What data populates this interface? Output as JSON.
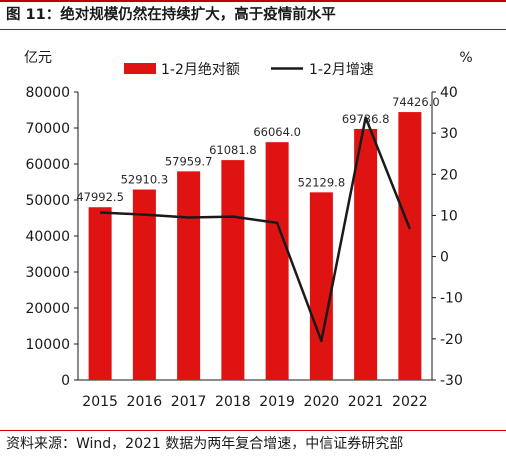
{
  "figure": {
    "title": "图 11：绝对规模仍然在持续扩大，高于疫情前水平",
    "source": "资料来源：Wind，2021 数据为两年复合增速，中信证券研究部"
  },
  "chart_data": {
    "type": "bar+line",
    "categories": [
      "2015",
      "2016",
      "2017",
      "2018",
      "2019",
      "2020",
      "2021",
      "2022"
    ],
    "series": [
      {
        "name": "1-2月绝对额",
        "kind": "bar",
        "axis": "left",
        "values": [
          47992.5,
          52910.3,
          57959.7,
          61081.8,
          66064.0,
          52129.8,
          69736.8,
          74426.0
        ],
        "labels": [
          "47992.5",
          "52910.3",
          "57959.7",
          "61081.8",
          "66064.0",
          "52129.8",
          "69736.8",
          "74426.0"
        ],
        "color": "#e01313"
      },
      {
        "name": "1-2月增速",
        "kind": "line",
        "axis": "right",
        "values": [
          10.7,
          10.2,
          9.5,
          9.7,
          8.2,
          -20.5,
          33.8,
          6.7
        ],
        "color": "#1a1a1a"
      }
    ],
    "y_left": {
      "label": "亿元",
      "min": 0,
      "max": 80000,
      "ticks": [
        0,
        10000,
        20000,
        30000,
        40000,
        50000,
        60000,
        70000,
        80000
      ]
    },
    "y_right": {
      "label": "%",
      "min": -30,
      "max": 40,
      "ticks": [
        -30,
        -20,
        -10,
        0,
        10,
        20,
        30,
        40
      ]
    },
    "legend": {
      "position": "top"
    },
    "grid": false
  }
}
